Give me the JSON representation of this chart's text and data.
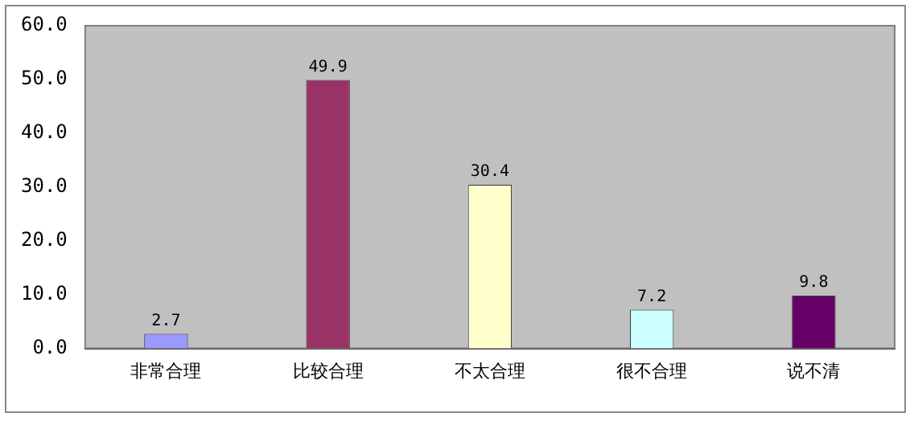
{
  "chart_data": {
    "type": "bar",
    "categories": [
      "非常合理",
      "比较合理",
      "不太合理",
      "很不合理",
      "说不清"
    ],
    "values": [
      2.7,
      49.9,
      30.4,
      7.2,
      9.8
    ],
    "colors": [
      "#9999ff",
      "#993366",
      "#ffffcc",
      "#ccffff",
      "#660066"
    ],
    "ylim": [
      0,
      60
    ],
    "yticks": [
      {
        "value": 0,
        "label": "0.0"
      },
      {
        "value": 10,
        "label": "10.0"
      },
      {
        "value": 20,
        "label": "20.0"
      },
      {
        "value": 30,
        "label": "30.0"
      },
      {
        "value": 40,
        "label": "40.0"
      },
      {
        "value": 50,
        "label": "50.0"
      },
      {
        "value": 60,
        "label": "60.0"
      }
    ],
    "data_labels": true,
    "grid": false,
    "legend": false
  }
}
